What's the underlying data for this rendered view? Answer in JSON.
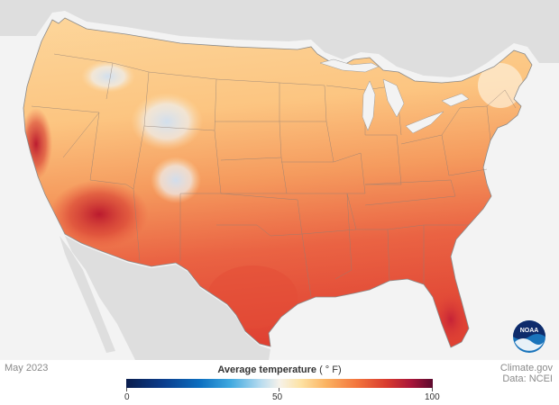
{
  "map": {
    "date": "May 2023",
    "legend_title": "Average temperature",
    "legend_unit": "( ° F)",
    "legend_ticks": [
      "0",
      "50",
      "100"
    ],
    "legend_scale": {
      "min": 0,
      "max": 100
    },
    "credit_line_1": "Climate.gov",
    "credit_line_2": "Data: NCEI",
    "logo_text": "NOAA",
    "colors": {
      "land_neighbor": "#dedede",
      "water": "#f3f3f3",
      "cool_north": "#fdd59a",
      "warm_south": "#e8523a",
      "hot_desert": "#c0202a",
      "cold_mountain": "#c9dcf0"
    }
  }
}
